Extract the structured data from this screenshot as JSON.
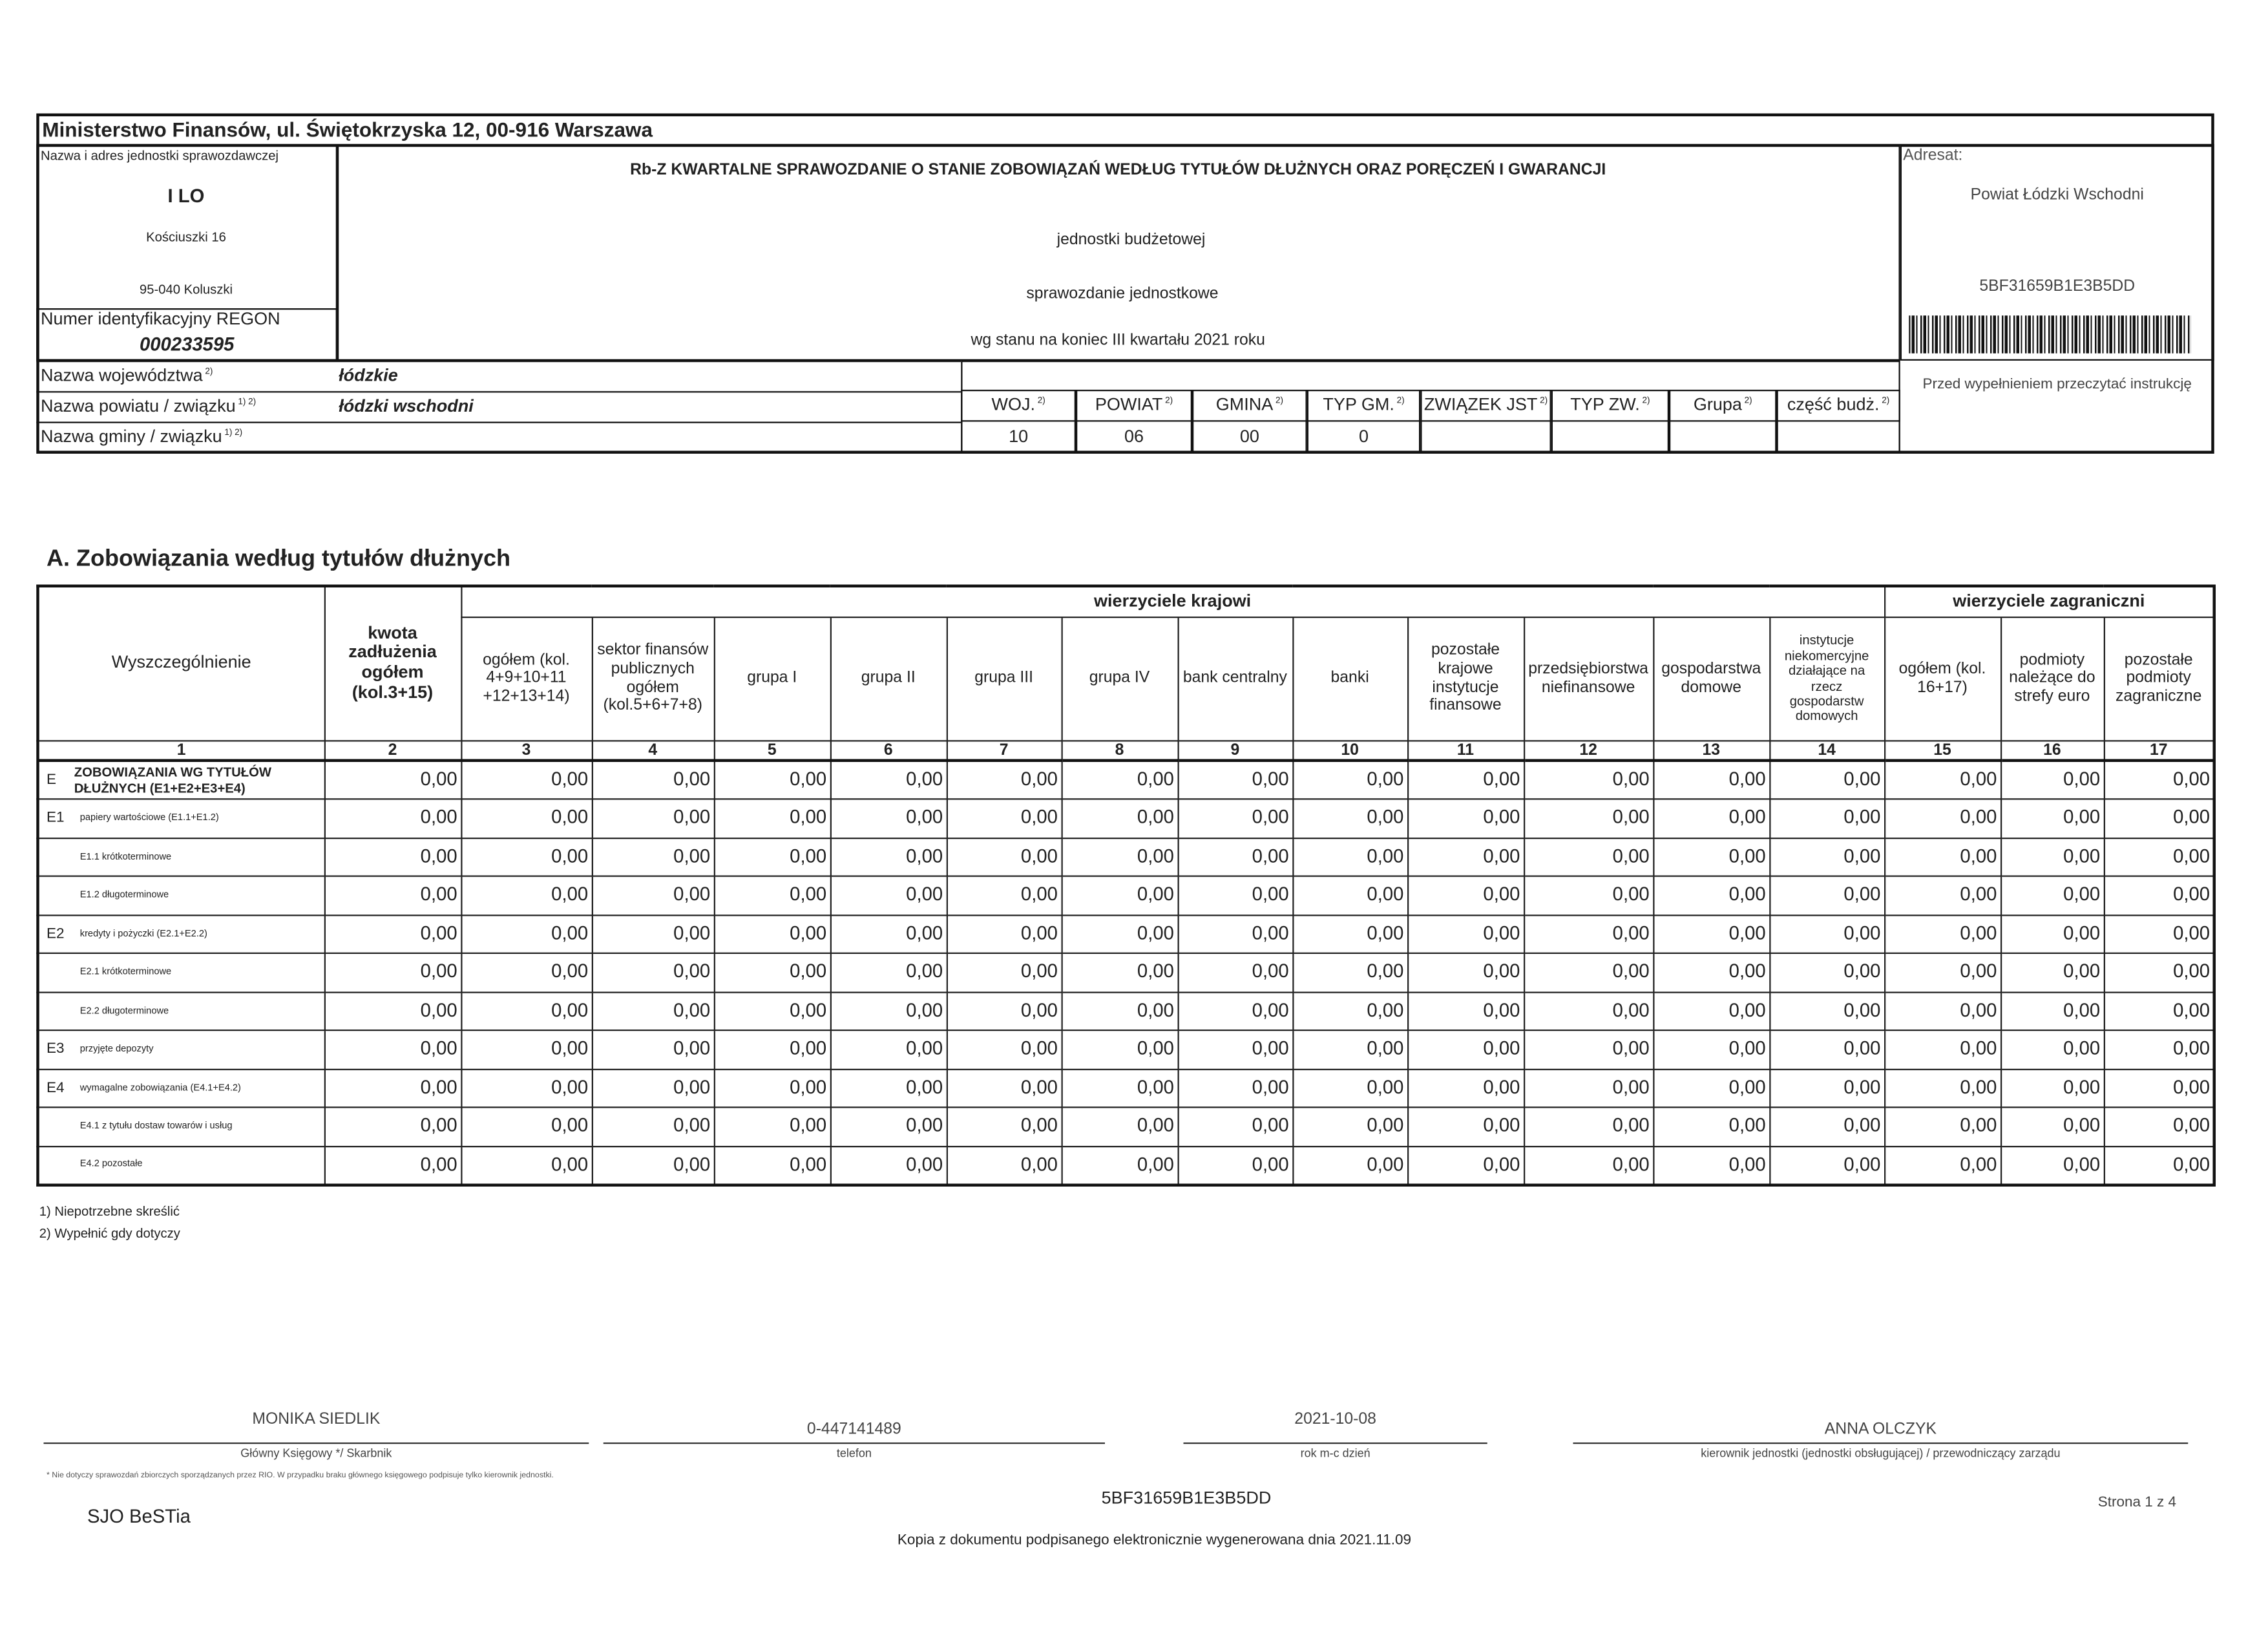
{
  "header": {
    "ministry": "Ministerstwo Finansów, ul. Świętokrzyska 12, 00-916 Warszawa",
    "unit_label": "Nazwa i adres jednostki sprawozdawczej",
    "unit_name": "I LO",
    "street": "Kościuszki 16",
    "city": "95-040 Koluszki",
    "regon_label": "Numer identyfikacyjny REGON",
    "regon": "000233595",
    "title": "Rb-Z KWARTALNE SPRAWOZDANIE O STANIE ZOBOWIĄZAŃ WEDŁUG TYTUŁÓW DŁUŻNYCH ORAZ PORĘCZEŃ I GWARANCJI",
    "unit_type": "jednostki budżetowej",
    "report_kind": "sprawozdanie jednostkowe",
    "period": "wg stanu na koniec III kwartału 2021 roku",
    "addressee_label": "Adresat:",
    "addressee": "Powiat Łódzki Wschodni",
    "code": "5BF31659B1E3B5DD",
    "instruction": "Przed wypełnieniem przeczytać instrukcję"
  },
  "territory": [
    {
      "label": "Nazwa województwa",
      "note": "2)",
      "value": "łódzkie"
    },
    {
      "label": "Nazwa powiatu / związku",
      "note": "1) 2)",
      "value": "łódzki wschodni"
    },
    {
      "label": "Nazwa gminy / związku",
      "note": "1) 2)"
    }
  ],
  "codes": [
    {
      "label": "WOJ.",
      "note": "2)",
      "value": "10"
    },
    {
      "label": "POWIAT",
      "note": "2)",
      "value": "06"
    },
    {
      "label": "GMINA",
      "note": "2)",
      "value": "00"
    },
    {
      "label": "TYP GM.",
      "note": "2)",
      "value": "0"
    },
    {
      "label": "ZWIĄZEK JST",
      "note": "2)"
    },
    {
      "label": "TYP ZW.",
      "note": "2)"
    },
    {
      "label": "Grupa",
      "note": "2)"
    },
    {
      "label": "część budż.",
      "note": "2)"
    }
  ],
  "section_title": "A. Zobowiązania według tytułów dłużnych",
  "table": {
    "groups": [
      {
        "label": "wierzyciele krajowi"
      },
      {
        "label": "wierzyciele zagraniczni"
      }
    ],
    "columns": [
      "Wyszczególnienie",
      "kwota zadłużenia ogółem (kol.3+15)",
      "ogółem (kol. 4+9+10+11 +12+13+14)",
      "sektor finansów publicznych ogółem (kol.5+6+7+8)",
      "grupa I",
      "grupa II",
      "grupa III",
      "grupa IV",
      "bank centralny",
      "banki",
      "pozostałe krajowe instytucje finansowe",
      "przedsiębiorstwa niefinansowe",
      "gospodarstwa domowe",
      "instytucje niekomercyjne działające na rzecz gospodarstw domowych",
      "ogółem (kol. 16+17)",
      "podmioty należące do strefy euro",
      "pozostałe podmioty zagraniczne"
    ],
    "numbers": [
      "1",
      "2",
      "3",
      "4",
      "5",
      "6",
      "7",
      "8",
      "9",
      "10",
      "11",
      "12",
      "13",
      "14",
      "15",
      "16",
      "17"
    ],
    "rows": [
      {
        "code": "E",
        "label": "ZOBOWIĄZANIA WG TYTUŁÓW DŁUŻNYCH (E1+E2+E3+E4)",
        "values": [
          "0,00",
          "0,00",
          "0,00",
          "0,00",
          "0,00",
          "0,00",
          "0,00",
          "0,00",
          "0,00",
          "0,00",
          "0,00",
          "0,00",
          "0,00",
          "0,00",
          "0,00",
          "0,00"
        ]
      },
      {
        "code": "E1",
        "label": "papiery wartościowe (E1.1+E1.2)",
        "values": [
          "0,00",
          "0,00",
          "0,00",
          "0,00",
          "0,00",
          "0,00",
          "0,00",
          "0,00",
          "0,00",
          "0,00",
          "0,00",
          "0,00",
          "0,00",
          "0,00",
          "0,00",
          "0,00"
        ]
      },
      {
        "label": "E1.1 krótkoterminowe",
        "values": [
          "0,00",
          "0,00",
          "0,00",
          "0,00",
          "0,00",
          "0,00",
          "0,00",
          "0,00",
          "0,00",
          "0,00",
          "0,00",
          "0,00",
          "0,00",
          "0,00",
          "0,00",
          "0,00"
        ]
      },
      {
        "label": "E1.2 długoterminowe",
        "values": [
          "0,00",
          "0,00",
          "0,00",
          "0,00",
          "0,00",
          "0,00",
          "0,00",
          "0,00",
          "0,00",
          "0,00",
          "0,00",
          "0,00",
          "0,00",
          "0,00",
          "0,00",
          "0,00"
        ]
      },
      {
        "code": "E2",
        "label": "kredyty i pożyczki (E2.1+E2.2)",
        "values": [
          "0,00",
          "0,00",
          "0,00",
          "0,00",
          "0,00",
          "0,00",
          "0,00",
          "0,00",
          "0,00",
          "0,00",
          "0,00",
          "0,00",
          "0,00",
          "0,00",
          "0,00",
          "0,00"
        ]
      },
      {
        "label": "E2.1 krótkoterminowe",
        "values": [
          "0,00",
          "0,00",
          "0,00",
          "0,00",
          "0,00",
          "0,00",
          "0,00",
          "0,00",
          "0,00",
          "0,00",
          "0,00",
          "0,00",
          "0,00",
          "0,00",
          "0,00",
          "0,00"
        ]
      },
      {
        "label": "E2.2 długoterminowe",
        "values": [
          "0,00",
          "0,00",
          "0,00",
          "0,00",
          "0,00",
          "0,00",
          "0,00",
          "0,00",
          "0,00",
          "0,00",
          "0,00",
          "0,00",
          "0,00",
          "0,00",
          "0,00",
          "0,00"
        ]
      },
      {
        "code": "E3",
        "label": "przyjęte depozyty",
        "values": [
          "0,00",
          "0,00",
          "0,00",
          "0,00",
          "0,00",
          "0,00",
          "0,00",
          "0,00",
          "0,00",
          "0,00",
          "0,00",
          "0,00",
          "0,00",
          "0,00",
          "0,00",
          "0,00"
        ]
      },
      {
        "code": "E4",
        "label": "wymagalne zobowiązania (E4.1+E4.2)",
        "values": [
          "0,00",
          "0,00",
          "0,00",
          "0,00",
          "0,00",
          "0,00",
          "0,00",
          "0,00",
          "0,00",
          "0,00",
          "0,00",
          "0,00",
          "0,00",
          "0,00",
          "0,00",
          "0,00"
        ]
      },
      {
        "label": "E4.1 z tytułu dostaw towarów i usług",
        "values": [
          "0,00",
          "0,00",
          "0,00",
          "0,00",
          "0,00",
          "0,00",
          "0,00",
          "0,00",
          "0,00",
          "0,00",
          "0,00",
          "0,00",
          "0,00",
          "0,00",
          "0,00",
          "0,00"
        ]
      },
      {
        "label": "E4.2 pozostałe",
        "values": [
          "0,00",
          "0,00",
          "0,00",
          "0,00",
          "0,00",
          "0,00",
          "0,00",
          "0,00",
          "0,00",
          "0,00",
          "0,00",
          "0,00",
          "0,00",
          "0,00",
          "0,00",
          "0,00"
        ]
      }
    ]
  },
  "footnotes": [
    "1) Niepotrzebne skreślić",
    "2) Wypełnić gdy dotyczy"
  ],
  "signatures": [
    {
      "name": "MONIKA SIEDLIK",
      "role": "Główny Księgowy */ Skarbnik"
    },
    {
      "name": "0-447141489",
      "role": "telefon"
    },
    {
      "name": "2021-10-08",
      "role": "rok m-c dzień"
    },
    {
      "name": "ANNA OLCZYK",
      "role": "kierownik jednostki (jednostki obsługującej) / przewodniczący zarządu"
    }
  ],
  "signature_note": "* Nie dotyczy sprawozdań zbiorczych sporządzanych przez RIO. W przypadku braku głównego księgowego podpisuje tylko kierownik jednostki.",
  "footer": {
    "code": "5BF31659B1E3B5DD",
    "page": "Strona 1 z 4",
    "system": "SJO BeSTia",
    "copy_note": "Kopia z dokumentu podpisanego elektronicznie wygenerowana dnia 2021.11.09"
  }
}
